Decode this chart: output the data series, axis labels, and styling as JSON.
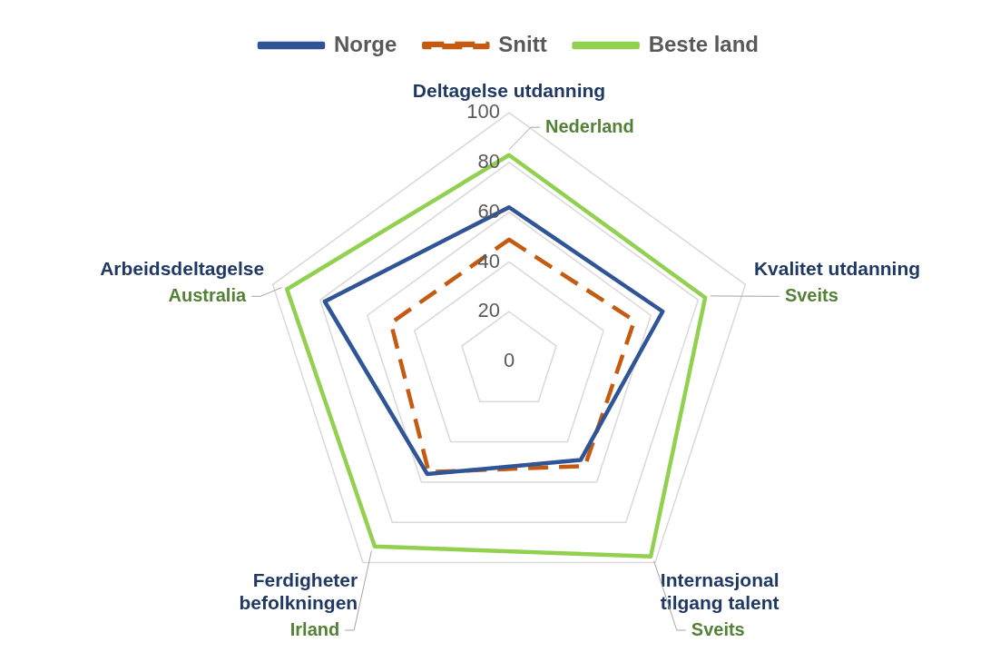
{
  "chart_data": {
    "type": "radar",
    "categories": [
      "Deltagelse utdanning",
      "Kvalitet utdanning",
      "Internasjonal tilgang talent",
      "Ferdigheter befolkningen",
      "Arbeidsdeltagelse"
    ],
    "series": [
      {
        "name": "Norge",
        "color": "#2f5597",
        "values": [
          62,
          65,
          49,
          56,
          78
        ]
      },
      {
        "name": "Snitt",
        "color": "#c55a11",
        "values": [
          49,
          53,
          52,
          55,
          50
        ],
        "line_style": "dashed"
      },
      {
        "name": "Beste land",
        "color": "#92d050",
        "values": [
          83,
          83,
          97,
          92,
          94
        ]
      }
    ],
    "ylim": [
      0,
      100
    ],
    "yticks": [
      0,
      20,
      40,
      60,
      80,
      100
    ],
    "grid": true,
    "legend": "top",
    "marker": "none",
    "annotations": [
      {
        "text": "Nederland",
        "x": "Deltagelse utdanning"
      },
      {
        "text": "Sveits",
        "x": "Kvalitet utdanning"
      },
      {
        "text": "Sveits",
        "x": "Internasjonal tilgang talent"
      },
      {
        "text": "Irland",
        "x": "Ferdigheter befolkningen"
      },
      {
        "text": "Australia",
        "x": "Arbeidsdeltagelse"
      }
    ]
  }
}
